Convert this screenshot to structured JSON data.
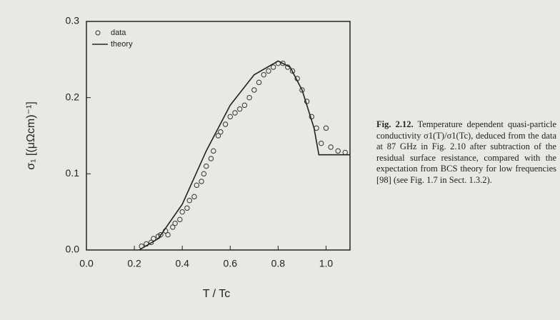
{
  "chart_data": {
    "type": "scatter",
    "xlabel": "T / Tc",
    "ylabel": "σ₁ [(μΩcm)⁻¹]",
    "xlim": [
      0,
      1.1
    ],
    "ylim": [
      0,
      0.3
    ],
    "xticks": [
      {
        "value": 0,
        "label": "0.0"
      },
      0.2,
      0.4,
      0.6,
      0.8,
      {
        "value": 1,
        "label": "1.0"
      }
    ],
    "yticks": [
      {
        "value": 0,
        "label": "0.0"
      },
      0.1,
      0.2,
      0.3
    ],
    "legend": "upper left",
    "series": [
      {
        "name": "data",
        "kind": "markers",
        "color": "#333333",
        "x": [
          0.23,
          0.25,
          0.27,
          0.28,
          0.3,
          0.31,
          0.33,
          0.34,
          0.36,
          0.37,
          0.39,
          0.4,
          0.42,
          0.43,
          0.45,
          0.46,
          0.48,
          0.49,
          0.5,
          0.52,
          0.53,
          0.55,
          0.56,
          0.58,
          0.6,
          0.62,
          0.64,
          0.66,
          0.68,
          0.7,
          0.72,
          0.74,
          0.76,
          0.78,
          0.8,
          0.82,
          0.84,
          0.86,
          0.88,
          0.9,
          0.92,
          0.94,
          0.96,
          0.98,
          1.0,
          1.02,
          1.05,
          1.08
        ],
        "values": [
          0.005,
          0.008,
          0.01,
          0.015,
          0.018,
          0.02,
          0.025,
          0.02,
          0.03,
          0.035,
          0.04,
          0.05,
          0.055,
          0.065,
          0.07,
          0.085,
          0.09,
          0.1,
          0.11,
          0.12,
          0.13,
          0.15,
          0.155,
          0.165,
          0.175,
          0.18,
          0.185,
          0.19,
          0.2,
          0.21,
          0.22,
          0.23,
          0.235,
          0.24,
          0.245,
          0.245,
          0.24,
          0.235,
          0.225,
          0.21,
          0.195,
          0.175,
          0.16,
          0.14,
          0.16,
          0.135,
          0.13,
          0.128
        ]
      },
      {
        "name": "theory",
        "kind": "line",
        "color": "#222222",
        "x": [
          0.22,
          0.3,
          0.4,
          0.5,
          0.6,
          0.7,
          0.8,
          0.85,
          0.9,
          0.95,
          0.97,
          1.0,
          1.1
        ],
        "values": [
          0,
          0.015,
          0.06,
          0.13,
          0.19,
          0.23,
          0.248,
          0.24,
          0.21,
          0.16,
          0.125,
          0.125,
          0.125
        ]
      }
    ]
  },
  "caption": {
    "label": "Fig. 2.12.",
    "text": "Temperature dependent quasi-particle conductivity σ1(T)/σ1(Tc), deduced from the data at 87 GHz in Fig. 2.10 after subtraction of the residual surface resistance, compared with the expectation from BCS theory for low frequencies [98] (see Fig. 1.7 in Sect. 1.3.2)."
  }
}
